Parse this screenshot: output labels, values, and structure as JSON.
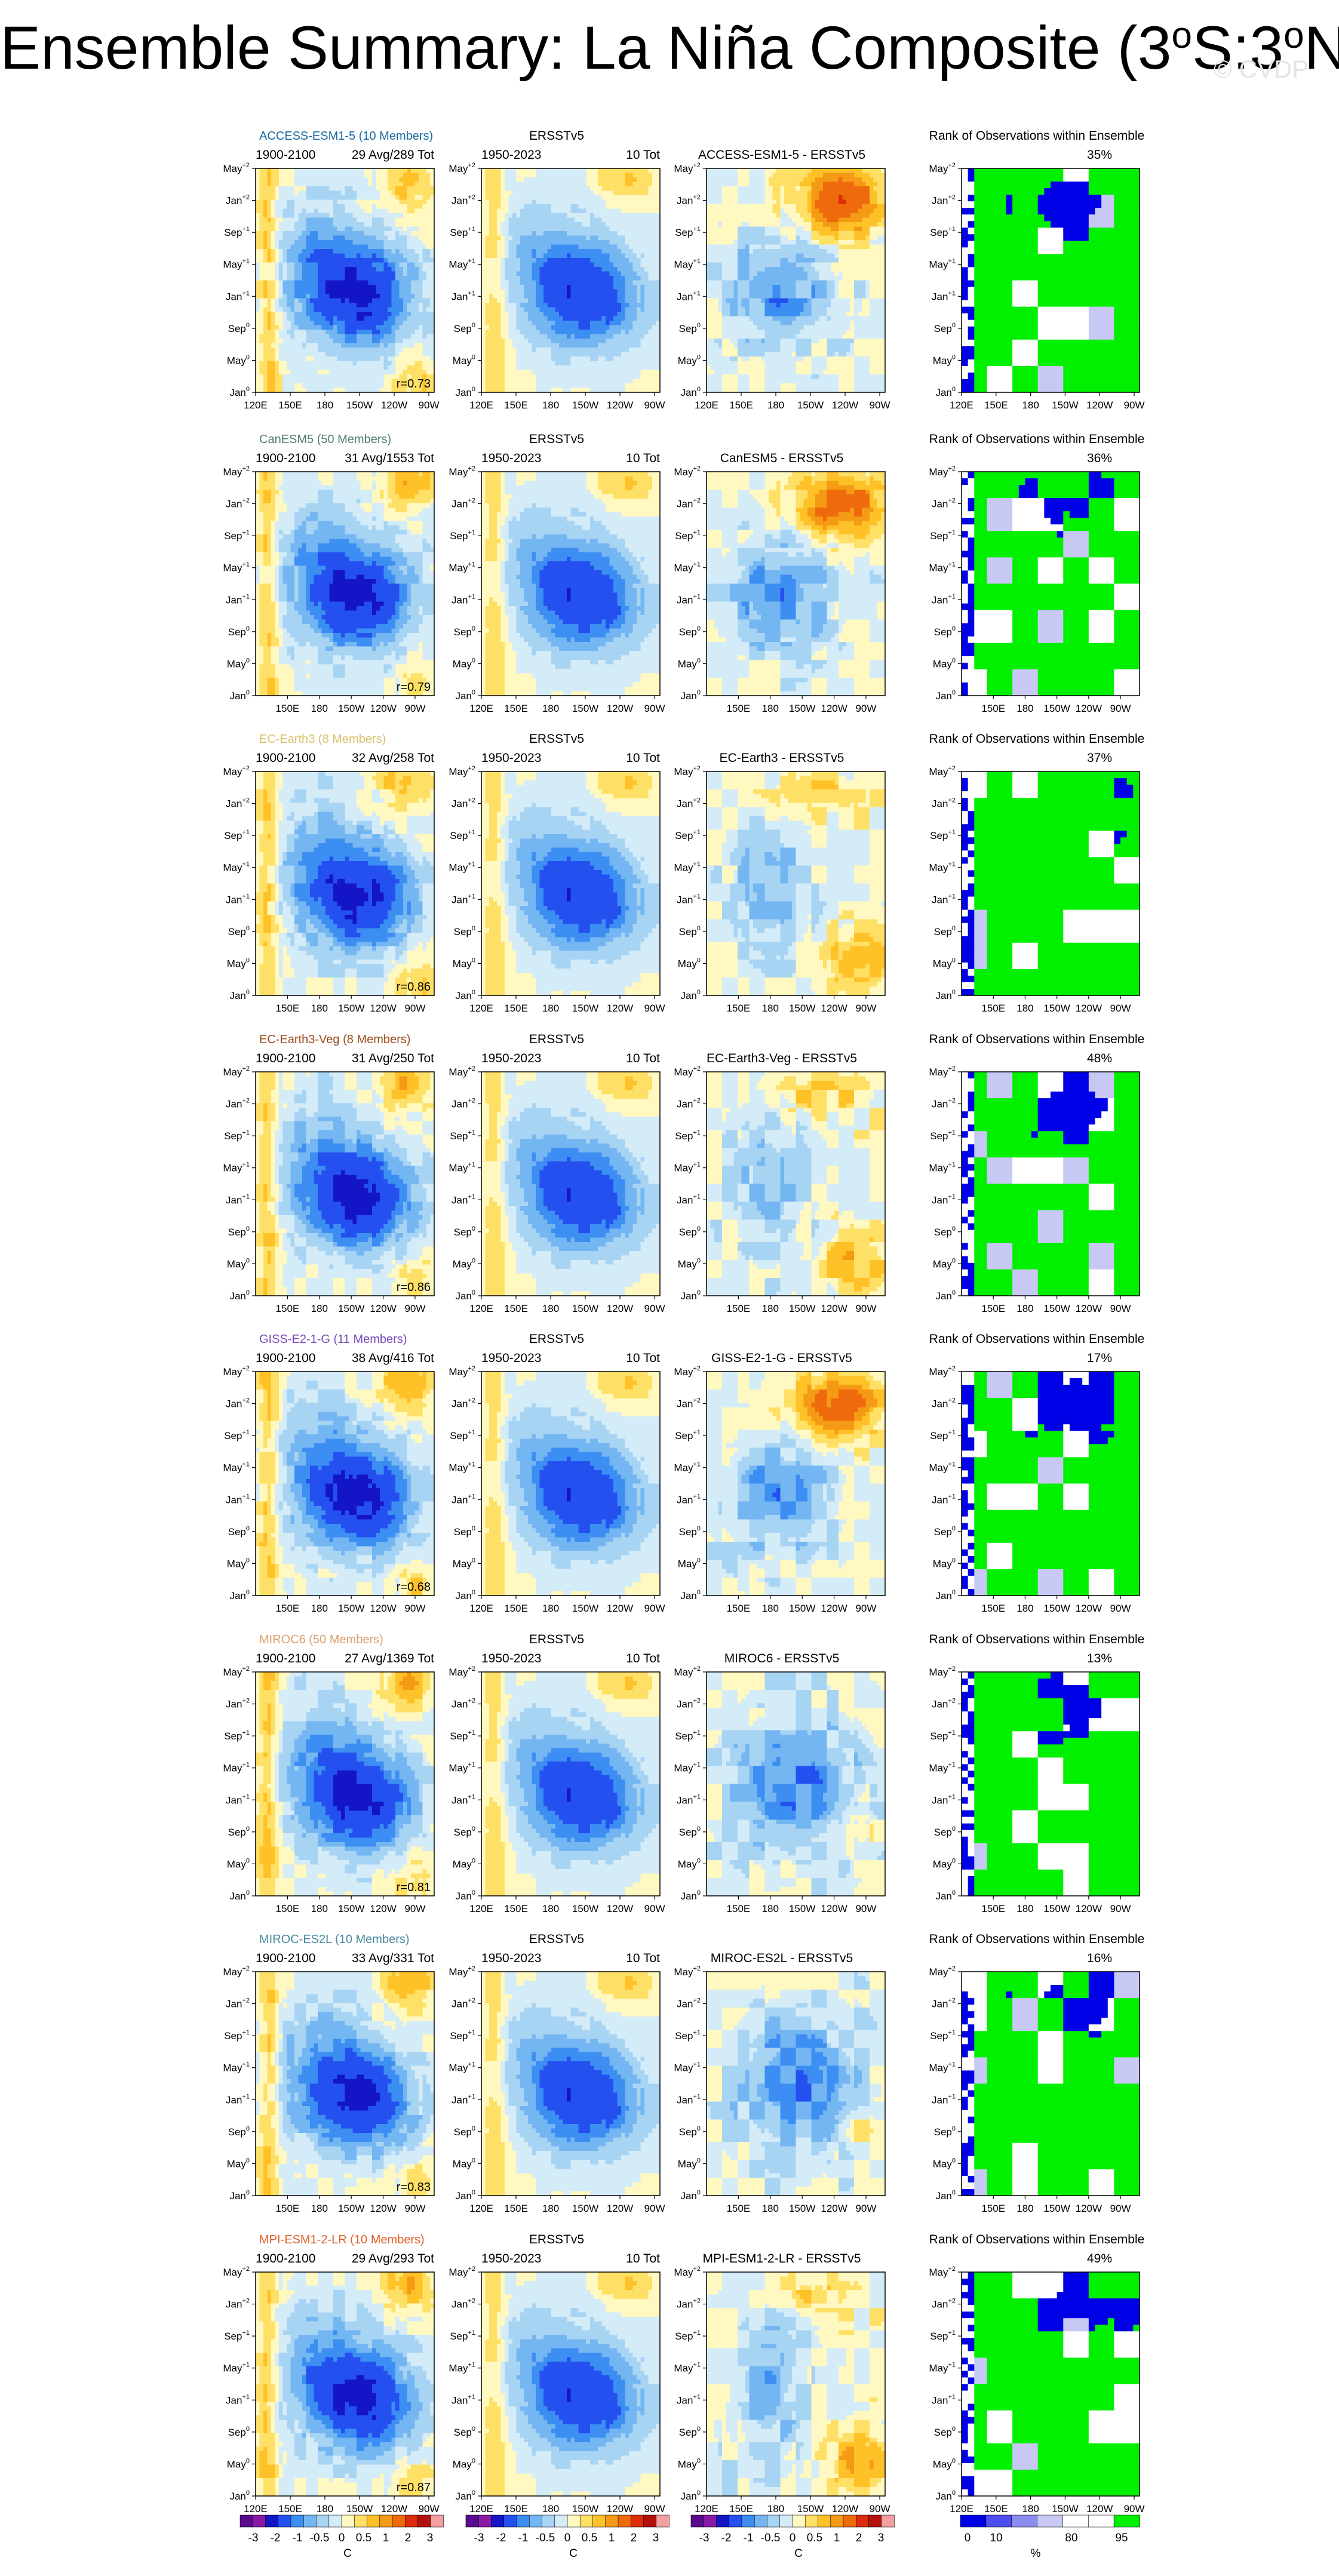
{
  "page": {
    "title_main": "Ensemble Summary: La Niña Composite (3",
    "title_o1": "o",
    "title_mid": "S:3",
    "title_o2": "o",
    "title_end": "N)",
    "watermark": "© CVDP"
  },
  "colors": {
    "sst_scale": [
      "#5a0a8c",
      "#8a1aa6",
      "#1515c8",
      "#2450f0",
      "#3d8ef2",
      "#74b6f2",
      "#a8d4f4",
      "#d4ebf8",
      "#fff8c0",
      "#ffe066",
      "#ffc128",
      "#f59a14",
      "#ee6a0c",
      "#dc2c0c",
      "#b4100c",
      "#f4a0a0"
    ],
    "rank_scale": [
      "#0000e6",
      "#4d4df0",
      "#8c8cf0",
      "#c8c8f4",
      "#ffffff",
      "#ffffff",
      "#00f000"
    ],
    "watermark": "#e4e4e4"
  },
  "chart_data": {
    "type": "heatmap",
    "panel_columns": [
      "model composite",
      "ERSSTv5 composite",
      "model minus ERSSTv5",
      "rank of observations within ensemble"
    ],
    "y_tick_labels": [
      {
        "base": "May",
        "sup": "+2"
      },
      {
        "base": "Jan",
        "sup": "+2"
      },
      {
        "base": "Sep",
        "sup": "+1"
      },
      {
        "base": "May",
        "sup": "+1"
      },
      {
        "base": "Jan",
        "sup": "+1"
      },
      {
        "base": "Sep",
        "sup": "0"
      },
      {
        "base": "May",
        "sup": "0"
      },
      {
        "base": "Jan",
        "sup": "0"
      }
    ],
    "x_tick_labels_full": [
      "120E",
      "150E",
      "180",
      "150W",
      "120W",
      "90W"
    ],
    "x_tick_labels_short": [
      "150E",
      "180",
      "150W",
      "120W",
      "90W"
    ],
    "rows": [
      {
        "model": "ACCESS-ESM1-5 (10 Members)",
        "model_color": "#1a6aa0",
        "period": "1900-2100",
        "avg_tot": "29 Avg/289 Tot",
        "r": "r=0.73",
        "obs_title": "ERSSTv5",
        "obs_period": "1950-2023",
        "obs_tot": "10 Tot",
        "diff_title": "ACCESS-ESM1-5 - ERSSTv5",
        "rank_title": "Rank of Observations within Ensemble",
        "rank_pct": "35%",
        "xfull": true,
        "mode": "warm"
      },
      {
        "model": "CanESM5 (50 Members)",
        "model_color": "#4f7f6f",
        "period": "1900-2100",
        "avg_tot": "31 Avg/1553 Tot",
        "r": "r=0.79",
        "obs_title": "ERSSTv5",
        "obs_period": "1950-2023",
        "obs_tot": "10 Tot",
        "diff_title": "CanESM5 - ERSSTv5",
        "rank_title": "Rank of Observations within Ensemble",
        "rank_pct": "36%",
        "xfull": false,
        "mode": "warm"
      },
      {
        "model": "EC-Earth3 (8 Members)",
        "model_color": "#d8c26a",
        "period": "1900-2100",
        "avg_tot": "32 Avg/258 Tot",
        "r": "r=0.86",
        "obs_title": "ERSSTv5",
        "obs_period": "1950-2023",
        "obs_tot": "10 Tot",
        "diff_title": "EC-Earth3 - ERSSTv5",
        "rank_title": "Rank of Observations within Ensemble",
        "rank_pct": "37%",
        "xfull": false,
        "mode": "mixed"
      },
      {
        "model": "EC-Earth3-Veg (8 Members)",
        "model_color": "#9a4a1a",
        "period": "1900-2100",
        "avg_tot": "31 Avg/250 Tot",
        "r": "r=0.86",
        "obs_title": "ERSSTv5",
        "obs_period": "1950-2023",
        "obs_tot": "10 Tot",
        "diff_title": "EC-Earth3-Veg - ERSSTv5",
        "rank_title": "Rank of Observations within Ensemble",
        "rank_pct": "48%",
        "xfull": false,
        "mode": "mixed"
      },
      {
        "model": "GISS-E2-1-G (11 Members)",
        "model_color": "#7a4ab8",
        "period": "1900-2100",
        "avg_tot": "38 Avg/416 Tot",
        "r": "r=0.68",
        "obs_title": "ERSSTv5",
        "obs_period": "1950-2023",
        "obs_tot": "10 Tot",
        "diff_title": "GISS-E2-1-G - ERSSTv5",
        "rank_title": "Rank of Observations within Ensemble",
        "rank_pct": "17%",
        "xfull": false,
        "mode": "warm"
      },
      {
        "model": "MIROC6 (50 Members)",
        "model_color": "#d8a070",
        "period": "1900-2100",
        "avg_tot": "27 Avg/1369 Tot",
        "r": "r=0.81",
        "obs_title": "ERSSTv5",
        "obs_period": "1950-2023",
        "obs_tot": "10 Tot",
        "diff_title": "MIROC6 - ERSSTv5",
        "rank_title": "Rank of Observations within Ensemble",
        "rank_pct": "13%",
        "xfull": false,
        "mode": "cold"
      },
      {
        "model": "MIROC-ES2L (10 Members)",
        "model_color": "#4a8aa0",
        "period": "1900-2100",
        "avg_tot": "33 Avg/331 Tot",
        "r": "r=0.83",
        "obs_title": "ERSSTv5",
        "obs_period": "1950-2023",
        "obs_tot": "10 Tot",
        "diff_title": "MIROC-ES2L - ERSSTv5",
        "rank_title": "Rank of Observations within Ensemble",
        "rank_pct": "16%",
        "xfull": false,
        "mode": "cold"
      },
      {
        "model": "MPI-ESM1-2-LR (10 Members)",
        "model_color": "#e0602a",
        "period": "1900-2100",
        "avg_tot": "29 Avg/293 Tot",
        "r": "r=0.87",
        "obs_title": "ERSSTv5",
        "obs_period": "1950-2023",
        "obs_tot": "10 Tot",
        "diff_title": "MPI-ESM1-2-LR - ERSSTv5",
        "rank_title": "Rank of Observations within Ensemble",
        "rank_pct": "49%",
        "xfull": true,
        "mode": "mixed"
      }
    ],
    "sst_colorbar": {
      "tick_labels": [
        "-3",
        "-2",
        "-1",
        "-0.5",
        "0",
        "0.5",
        "1",
        "2",
        "3"
      ],
      "unit": "C"
    },
    "rank_colorbar": {
      "tick_labels": [
        "0",
        "10",
        "80",
        "95"
      ],
      "unit": "%"
    }
  }
}
